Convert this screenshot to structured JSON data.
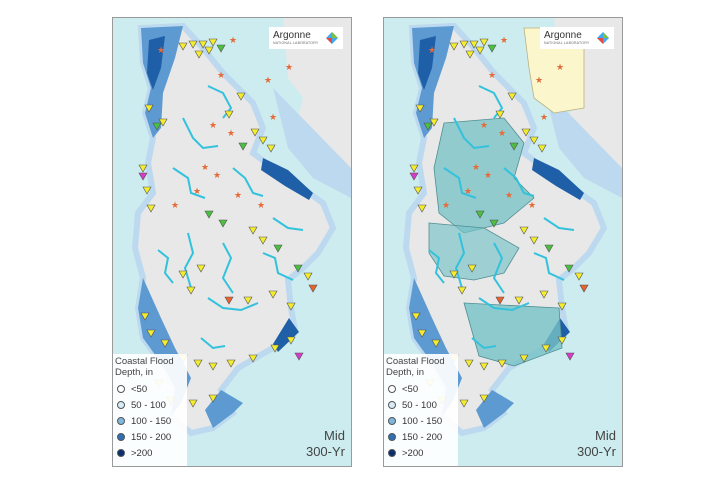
{
  "panels": [
    {
      "id": "left",
      "logo": {
        "name": "Argonne",
        "subtitle": "NATIONAL LABORATORY"
      },
      "legend": {
        "title": "Coastal Flood Depth, in",
        "items": [
          {
            "label": "<50",
            "color": "#ffffff"
          },
          {
            "label": "50 - 100",
            "color": "#d6ecf7"
          },
          {
            "label": "100 - 150",
            "color": "#7fb7dc"
          },
          {
            "label": "150 - 200",
            "color": "#2f6fb3"
          },
          {
            "label": ">200",
            "color": "#0b2e70"
          }
        ]
      },
      "scenario": {
        "line1": "Mid",
        "line2": "300-Yr"
      },
      "overlay_zones": false
    },
    {
      "id": "right",
      "logo": {
        "name": "Argonne",
        "subtitle": "NATIONAL LABORATORY"
      },
      "legend": {
        "title": "Coastal Flood Depth, in",
        "items": [
          {
            "label": "<50",
            "color": "#ffffff"
          },
          {
            "label": "50 - 100",
            "color": "#d6ecf7"
          },
          {
            "label": "100 - 150",
            "color": "#7fb7dc"
          },
          {
            "label": "150 - 200",
            "color": "#2f6fb3"
          },
          {
            "label": ">200",
            "color": "#0b2e70"
          }
        ]
      },
      "scenario": {
        "line1": "Mid",
        "line2": "300-Yr"
      },
      "overlay_zones": true
    }
  ],
  "colors": {
    "water": "#cdecef",
    "land": "#e8e8e8",
    "flood_light": "#bcd9ef",
    "flood_mid": "#5c9ad1",
    "flood_dark": "#1f5fa8",
    "river": "#33c2dc",
    "zone_teal": "#76c2c6",
    "zone_yellow": "#fbf6cc",
    "marker_yellow": "#f4ec2e",
    "marker_green": "#4bbf3f",
    "marker_orange": "#e8622b",
    "marker_magenta": "#d63ac8",
    "star": "#e46a38"
  },
  "icons": [
    "triangle-marker-icon",
    "star-marker-icon",
    "argonne-logo-icon"
  ]
}
